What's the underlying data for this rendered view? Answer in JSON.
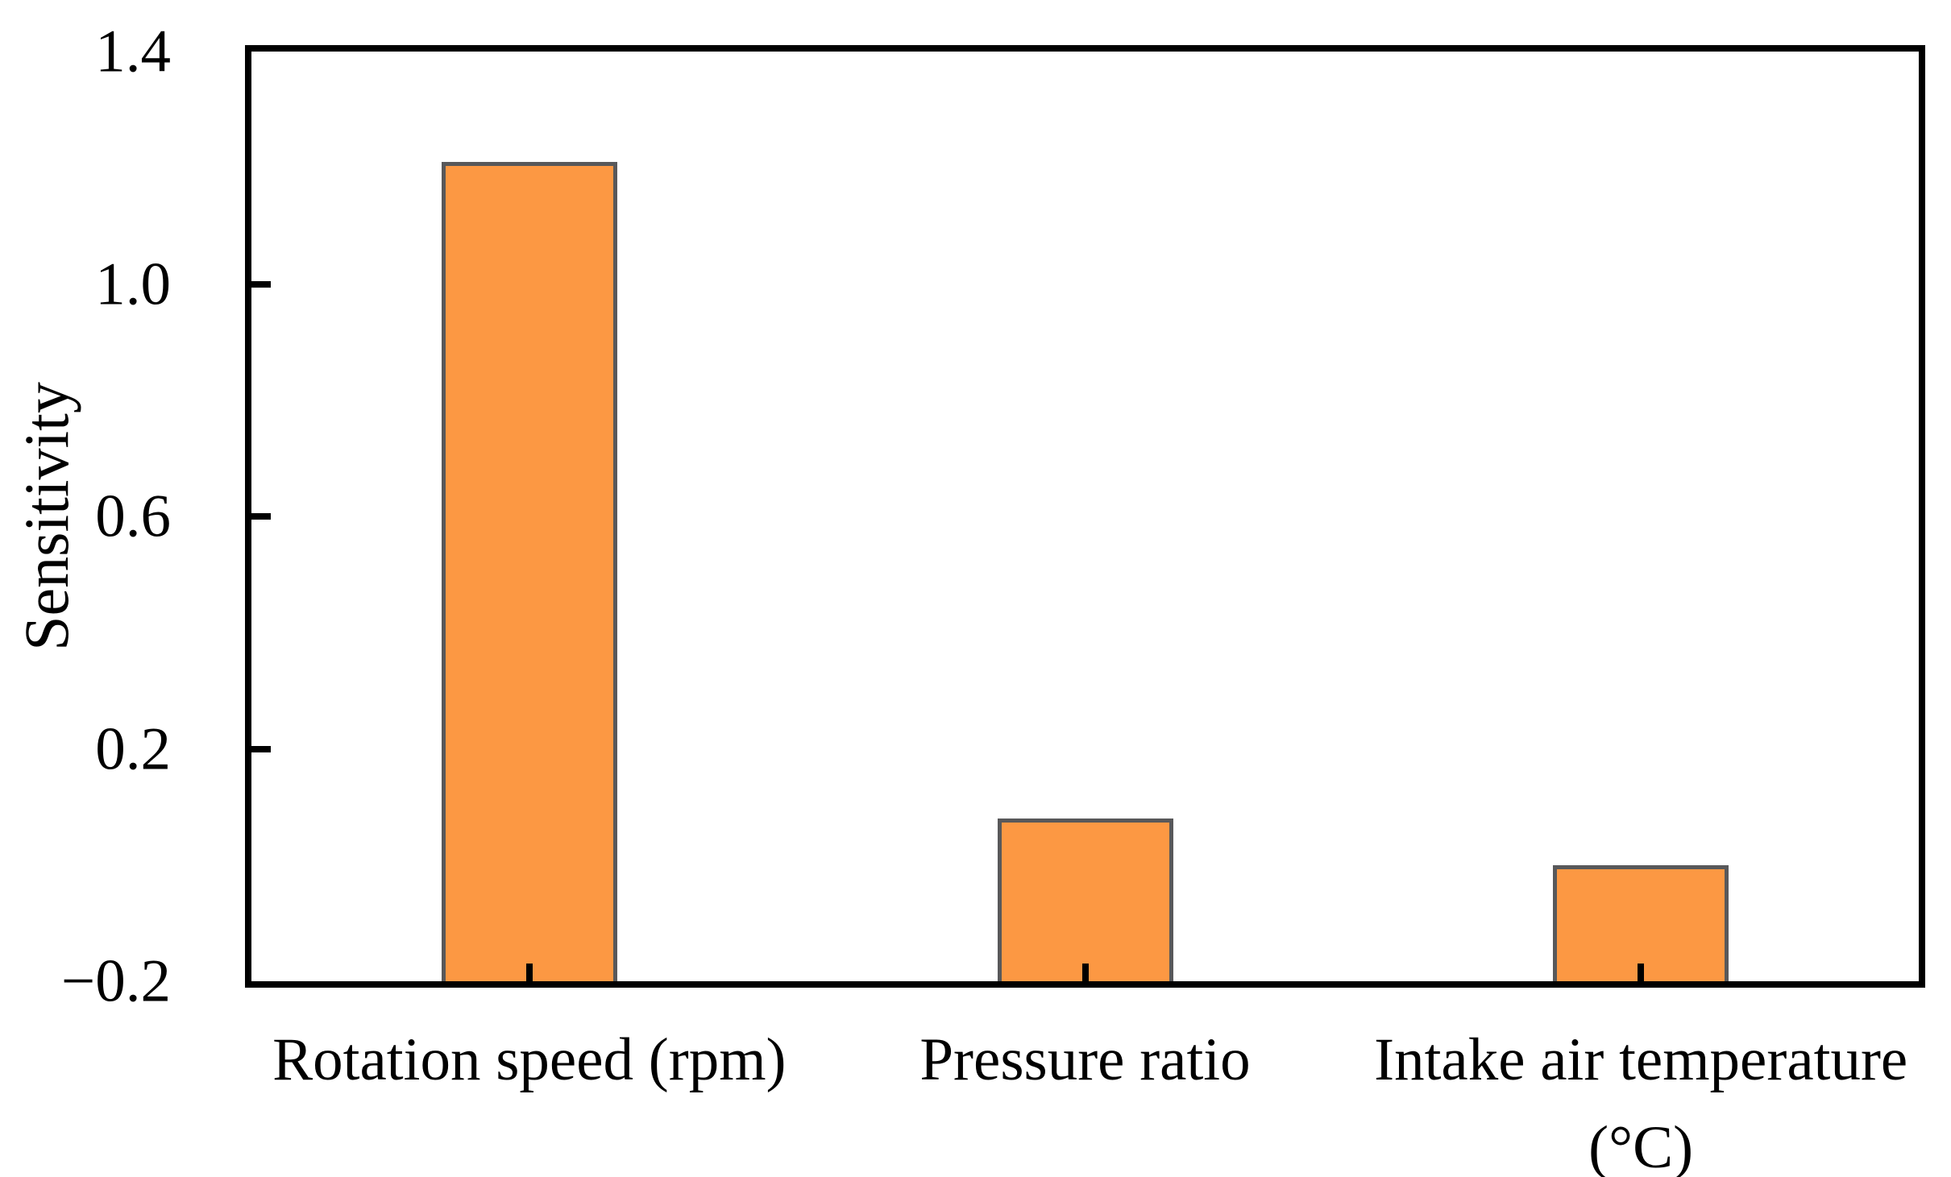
{
  "chart_data": {
    "type": "bar",
    "title": "",
    "xlabel": "",
    "ylabel": "Sensitivity",
    "categories": [
      "Rotation speed (rpm)",
      "Pressure ratio",
      "Intake air temperature (°C)"
    ],
    "categories_lines": [
      [
        "Rotation speed (rpm)"
      ],
      [
        "Pressure ratio"
      ],
      [
        "Intake air temperature",
        "(°C)"
      ]
    ],
    "values": [
      1.21,
      0.08,
      0.0
    ],
    "series": [
      {
        "name": "Sensitivity",
        "values": [
          1.21,
          0.08,
          0.0
        ]
      }
    ],
    "ylim": [
      -0.2,
      1.4
    ],
    "ytick_values": [
      1.4,
      1.0,
      0.6,
      0.2,
      -0.2
    ],
    "ytick_labels": [
      "1.4",
      "1.0",
      "0.6",
      "0.2",
      "−0.2"
    ],
    "bar_baseline": -0.2,
    "grid": false,
    "legend_position": "none",
    "colors": {
      "bar_fill": "#FC9843",
      "bar_border": "#58585A",
      "axis_frame": "#000000",
      "tick": "#000000",
      "text": "#000000",
      "background": "#FFFFFF"
    }
  }
}
